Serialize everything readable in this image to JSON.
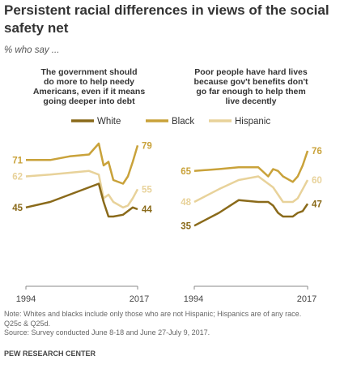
{
  "title": "Persistent racial differences in views of the social safety net",
  "subtitle": "% who say ...",
  "legend": [
    "White",
    "Black",
    "Hispanic"
  ],
  "colors": {
    "White": "#8a6a1a",
    "Black": "#c9a23a",
    "Hispanic": "#e8d29a"
  },
  "note_lines": [
    "Note: Whites and blacks include only those who are not Hispanic; Hispanics are of any race.",
    "Q25c & Q25d.",
    "Source: Survey conducted June 8-18 and June 27-July 9, 2017."
  ],
  "brand": "PEW RESEARCH CENTER",
  "chart_data": [
    {
      "type": "line",
      "title_lines": [
        "The government should",
        "do more to help needy",
        "Americans, even if it means",
        "going deeper into debt"
      ],
      "x_ticks": [
        "1994",
        "2017"
      ],
      "xlim": [
        1994,
        2017
      ],
      "ylim": [
        0,
        100
      ],
      "series": [
        {
          "name": "Black",
          "start_label": "71",
          "end_label": "79",
          "x": [
            1994,
            1999,
            2003,
            2007,
            2009,
            2010,
            2011,
            2012,
            2014,
            2015,
            2016,
            2017
          ],
          "values": [
            71,
            71,
            73,
            74,
            80,
            68,
            70,
            60,
            58,
            62,
            70,
            79
          ]
        },
        {
          "name": "Hispanic",
          "start_label": "62",
          "end_label": "55",
          "x": [
            1994,
            1999,
            2003,
            2007,
            2009,
            2010,
            2011,
            2012,
            2014,
            2015,
            2016,
            2017
          ],
          "values": [
            62,
            63,
            64,
            65,
            63,
            50,
            52,
            48,
            45,
            46,
            50,
            55
          ]
        },
        {
          "name": "White",
          "start_label": "45",
          "end_label": "44",
          "x": [
            1994,
            1999,
            2003,
            2007,
            2009,
            2010,
            2011,
            2012,
            2014,
            2015,
            2016,
            2017
          ],
          "values": [
            45,
            48,
            52,
            56,
            58,
            48,
            40,
            40,
            41,
            43,
            45,
            44
          ]
        }
      ]
    },
    {
      "type": "line",
      "title_lines": [
        "Poor people have hard lives",
        "because gov't benefits don't",
        "go far enough to help them",
        "live decently"
      ],
      "x_ticks": [
        "1994",
        "2017"
      ],
      "xlim": [
        1994,
        2017
      ],
      "ylim": [
        0,
        100
      ],
      "series": [
        {
          "name": "Black",
          "start_label": "65",
          "end_label": "76",
          "x": [
            1994,
            1999,
            2003,
            2007,
            2009,
            2010,
            2011,
            2012,
            2014,
            2015,
            2016,
            2017
          ],
          "values": [
            65,
            66,
            67,
            67,
            62,
            66,
            65,
            62,
            59,
            62,
            68,
            76
          ]
        },
        {
          "name": "Hispanic",
          "start_label": "48",
          "end_label": "60",
          "x": [
            1994,
            1999,
            2003,
            2007,
            2009,
            2010,
            2011,
            2012,
            2014,
            2015,
            2016,
            2017
          ],
          "values": [
            48,
            55,
            60,
            62,
            58,
            56,
            52,
            48,
            48,
            50,
            55,
            60
          ]
        },
        {
          "name": "White",
          "start_label": "35",
          "end_label": "47",
          "x": [
            1994,
            1999,
            2003,
            2007,
            2009,
            2010,
            2011,
            2012,
            2014,
            2015,
            2016,
            2017
          ],
          "values": [
            35,
            42,
            49,
            48,
            48,
            46,
            42,
            40,
            40,
            42,
            43,
            47
          ]
        }
      ]
    }
  ]
}
